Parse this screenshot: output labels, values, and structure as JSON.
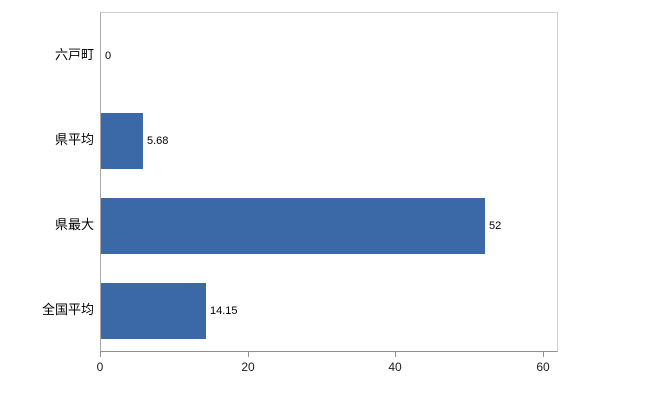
{
  "chart_data": {
    "type": "bar",
    "orientation": "horizontal",
    "title": "",
    "categories": [
      "六戸町",
      "県平均",
      "県最大",
      "全国平均"
    ],
    "values": [
      0,
      5.68,
      52,
      14.15
    ],
    "value_labels": [
      "0",
      "5.68",
      "52",
      "14.15"
    ],
    "x_ticks": [
      "0",
      "20",
      "40",
      "60"
    ],
    "x_tick_values": [
      0,
      20,
      40,
      60
    ],
    "xlim": [
      0,
      62
    ],
    "bar_color": "#3b69a8",
    "grid": false,
    "legend": false
  }
}
